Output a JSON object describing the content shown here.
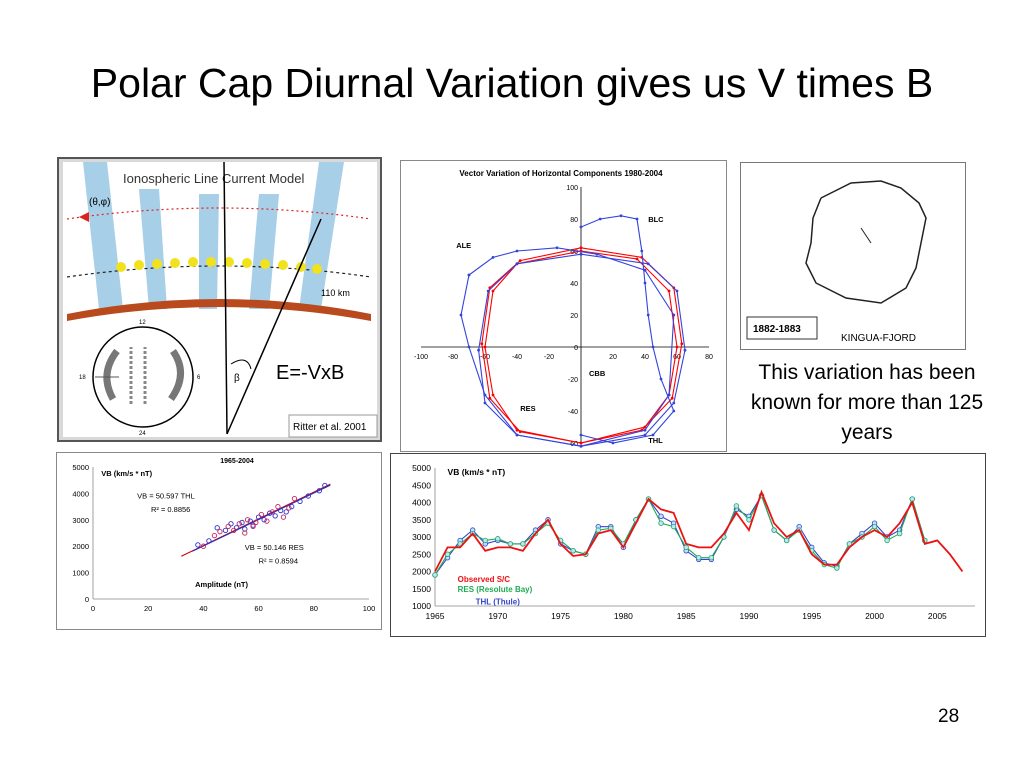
{
  "slide": {
    "title": "Polar Cap Diurnal Variation gives us V times B",
    "formula": "E=-VxB",
    "caption": "This variation has been known for more than 125 years",
    "page_number": "28"
  },
  "model_panel": {
    "title": "Ionospheric Line Current Model",
    "theta_phi": "(θ,φ)",
    "altitude": "110 km",
    "beta": "β",
    "credit": "Ritter et al. 2001",
    "dial_top": "12",
    "dial_bottom": "24",
    "dial_left": "18",
    "dial_right": "6"
  },
  "kingua_panel": {
    "period": "1882-1883",
    "station": "KINGUA-FJORD"
  },
  "chart_data": [
    {
      "type": "line",
      "title": "Vector Variation of Horizontal Components 1980-2004",
      "xlim": [
        -100,
        80
      ],
      "ylim": [
        -60,
        100
      ],
      "xticks": [
        -100,
        -80,
        -60,
        -40,
        -20,
        0,
        20,
        40,
        60,
        80
      ],
      "yticks": [
        -60,
        -40,
        -20,
        0,
        20,
        40,
        60,
        80,
        100
      ],
      "annotations": [
        "ALE",
        "BLC",
        "CBB",
        "RES",
        "THL"
      ],
      "series": [
        {
          "name": "CBB",
          "color": "#ff0000",
          "x": [
            0,
            35,
            55,
            60,
            55,
            40,
            0,
            -40,
            -55,
            -60,
            -55,
            -40,
            0
          ],
          "y": [
            60,
            55,
            35,
            0,
            -30,
            -50,
            -60,
            -52,
            -30,
            0,
            35,
            52,
            60
          ]
        },
        {
          "name": "RES",
          "color": "#ff0000",
          "x": [
            0,
            38,
            58,
            63,
            57,
            38,
            0,
            -38,
            -57,
            -62,
            -57,
            -38,
            0
          ],
          "y": [
            62,
            56,
            37,
            2,
            -32,
            -52,
            -60,
            -53,
            -32,
            2,
            37,
            54,
            62
          ]
        },
        {
          "name": "THL",
          "color": "#3344dd",
          "x": [
            0,
            42,
            60,
            65,
            58,
            40,
            0,
            -40,
            -60,
            -64,
            -58,
            -40,
            0
          ],
          "y": [
            58,
            52,
            35,
            -2,
            -35,
            -55,
            -62,
            -55,
            -35,
            -2,
            35,
            52,
            58
          ]
        },
        {
          "name": "ALE",
          "color": "#3344dd",
          "x": [
            -70,
            -55,
            -40,
            -15,
            10,
            40,
            58,
            55,
            40,
            0,
            -40,
            -60,
            -70,
            -75,
            -70
          ],
          "y": [
            45,
            56,
            60,
            62,
            58,
            48,
            20,
            -30,
            -52,
            -62,
            -55,
            -30,
            0,
            20,
            45
          ]
        },
        {
          "name": "BLC",
          "color": "#3344dd",
          "x": [
            0,
            12,
            25,
            35,
            38,
            40,
            42,
            45,
            50,
            58,
            45,
            20,
            0
          ],
          "y": [
            75,
            80,
            82,
            80,
            60,
            40,
            20,
            0,
            -20,
            -40,
            -55,
            -60,
            -55
          ]
        }
      ]
    },
    {
      "type": "scatter",
      "title": "1965-2004",
      "ylabel": "VB (km/s * nT)",
      "xlabel": "Amplitude (nT)",
      "xlim": [
        0,
        100
      ],
      "ylim": [
        0,
        5000
      ],
      "xticks": [
        0,
        20,
        40,
        60,
        80,
        100
      ],
      "yticks": [
        0,
        1000,
        2000,
        3000,
        4000,
        5000
      ],
      "annotations": [
        "VB = 50.597 THL",
        "R² = 0.8856",
        "VB = 50.146 RES",
        "R² = 0.8594"
      ],
      "fits": [
        {
          "color": "#cc0000",
          "x": [
            32,
            86
          ],
          "y": [
            1619,
            4351
          ]
        },
        {
          "color": "#2233cc",
          "x": [
            36,
            86
          ],
          "y": [
            1805,
            4313
          ]
        }
      ],
      "series": [
        {
          "name": "THL",
          "color": "#2233cc",
          "x": [
            38,
            42,
            45,
            48,
            50,
            52,
            54,
            55,
            57,
            58,
            60,
            62,
            64,
            66,
            68,
            70,
            72,
            75,
            78,
            82,
            84
          ],
          "y": [
            2050,
            2200,
            2700,
            2600,
            2850,
            2700,
            2900,
            2650,
            2950,
            2800,
            3100,
            3000,
            3250,
            3150,
            3350,
            3300,
            3500,
            3700,
            3900,
            4100,
            4300
          ]
        },
        {
          "name": "RES",
          "color": "#cc2255",
          "x": [
            40,
            44,
            46,
            49,
            51,
            53,
            55,
            56,
            58,
            59,
            61,
            63,
            65,
            67,
            69,
            71,
            73
          ],
          "y": [
            2000,
            2400,
            2550,
            2750,
            2600,
            2850,
            2500,
            3000,
            2750,
            2900,
            3200,
            2950,
            3300,
            3500,
            3100,
            3450,
            3800
          ]
        }
      ]
    },
    {
      "type": "line",
      "ylabel": "VB (km/s * nT)",
      "xlim": [
        1965,
        2008
      ],
      "ylim": [
        1000,
        5000
      ],
      "xticks": [
        1965,
        1970,
        1975,
        1980,
        1985,
        1990,
        1995,
        2000,
        2005
      ],
      "yticks": [
        1000,
        1500,
        2000,
        2500,
        3000,
        3500,
        4000,
        4500,
        5000
      ],
      "legend_position": "bottom-left",
      "x": [
        1965,
        1966,
        1967,
        1968,
        1969,
        1970,
        1971,
        1972,
        1973,
        1974,
        1975,
        1976,
        1977,
        1978,
        1979,
        1980,
        1981,
        1982,
        1983,
        1984,
        1985,
        1986,
        1987,
        1988,
        1989,
        1990,
        1991,
        1992,
        1993,
        1994,
        1995,
        1996,
        1997,
        1998,
        1999,
        2000,
        2001,
        2002,
        2003,
        2004,
        2005,
        2006,
        2007
      ],
      "series": [
        {
          "name": "Observed S/C",
          "color": "#ee1111",
          "values": [
            2000,
            2700,
            2700,
            3100,
            2600,
            2700,
            2700,
            2600,
            3100,
            3500,
            2800,
            2450,
            2500,
            3100,
            3200,
            2700,
            3400,
            4100,
            3800,
            3700,
            2800,
            2700,
            2700,
            3100,
            3700,
            3200,
            4300,
            3400,
            3000,
            3200,
            2500,
            2200,
            2200,
            2700,
            3000,
            3200,
            3000,
            3400,
            4000,
            2800,
            2900,
            2500,
            2000
          ]
        },
        {
          "name": "RES (Resolute Bay)",
          "color": "#22aa55",
          "values": [
            1900,
            2500,
            2800,
            3100,
            2900,
            2950,
            2800,
            2800,
            3100,
            3400,
            2900,
            2600,
            2500,
            3200,
            3250,
            2800,
            3500,
            4100,
            3400,
            3300,
            2700,
            2400,
            2400,
            3000,
            3900,
            3500,
            4200,
            3200,
            2900,
            3200,
            2600,
            2200,
            2100,
            2800,
            3000,
            3300,
            2900,
            3100,
            4100,
            2900,
            null,
            null,
            null
          ]
        },
        {
          "name": "THL (Thule)",
          "color": "#3344cc",
          "values": [
            1900,
            2400,
            2900,
            3200,
            2800,
            2900,
            2800,
            2800,
            3200,
            3500,
            2800,
            2600,
            2500,
            3300,
            3300,
            2700,
            3500,
            4100,
            3600,
            3400,
            2600,
            2350,
            2350,
            3000,
            3800,
            3600,
            4200,
            3200,
            2900,
            3300,
            2700,
            2250,
            2150,
            2800,
            3100,
            3400,
            3000,
            3200,
            4100,
            2900,
            null,
            null,
            null
          ]
        }
      ]
    }
  ]
}
